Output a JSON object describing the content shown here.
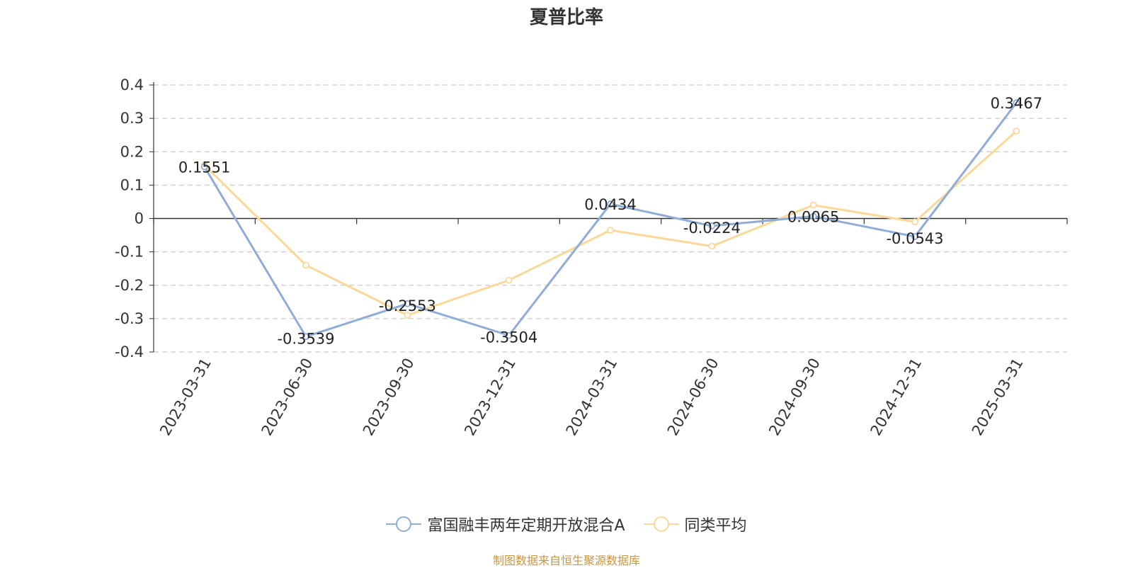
{
  "title": "夏普比率",
  "source": "制图数据来自恒生聚源数据库",
  "colors": {
    "series1": "#8eadd8",
    "series2": "#fcd898",
    "grid": "#cccccc",
    "axis": "#333333",
    "source": "#c8963c"
  },
  "chart_data": {
    "type": "line",
    "categories": [
      "2023-03-31",
      "2023-06-30",
      "2023-09-30",
      "2023-12-31",
      "2024-03-31",
      "2024-06-30",
      "2024-09-30",
      "2024-12-31",
      "2025-03-31"
    ],
    "yticks": [
      "0.4",
      "0.3",
      "0.2",
      "0.1",
      "0",
      "-0.1",
      "-0.2",
      "-0.3",
      "-0.4"
    ],
    "ylim": [
      -0.4,
      0.4
    ],
    "grid": true,
    "legend_position": "bottom-center",
    "series": [
      {
        "name": "富国融丰两年定期开放混合A",
        "values": [
          0.1551,
          -0.3539,
          -0.2553,
          -0.3504,
          0.0434,
          -0.0224,
          0.0065,
          -0.0543,
          0.3467
        ],
        "labels": [
          "0.1551",
          "-0.3539",
          "-0.2553",
          "-0.3504",
          "0.0434",
          "-0.0224",
          "0.0065",
          "-0.0543",
          "0.3467"
        ]
      },
      {
        "name": "同类平均",
        "values": [
          0.16,
          -0.14,
          -0.29,
          -0.185,
          -0.035,
          -0.083,
          0.04,
          -0.01,
          0.262
        ]
      }
    ]
  }
}
